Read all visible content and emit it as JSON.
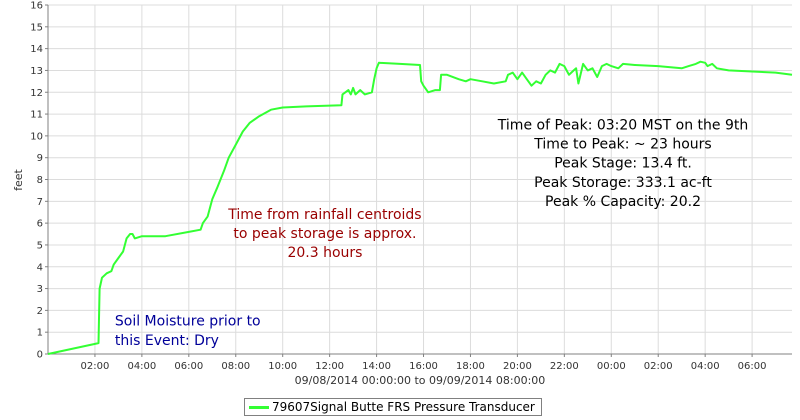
{
  "chart_data": {
    "type": "line",
    "title": "",
    "xlabel": "09/08/2014 00:00:00 to 09/09/2014 08:00:00",
    "ylabel": "feet",
    "xlim": [
      0,
      31.7
    ],
    "ylim": [
      0,
      16
    ],
    "yticks": [
      0,
      1,
      2,
      3,
      4,
      5,
      6,
      7,
      8,
      9,
      10,
      11,
      12,
      13,
      14,
      15,
      16
    ],
    "xticks": [
      {
        "x": 2,
        "label": "02:00"
      },
      {
        "x": 4,
        "label": "04:00"
      },
      {
        "x": 6,
        "label": "06:00"
      },
      {
        "x": 8,
        "label": "08:00"
      },
      {
        "x": 10,
        "label": "10:00"
      },
      {
        "x": 12,
        "label": "12:00"
      },
      {
        "x": 14,
        "label": "14:00"
      },
      {
        "x": 16,
        "label": "16:00"
      },
      {
        "x": 18,
        "label": "18:00"
      },
      {
        "x": 20,
        "label": "20:00"
      },
      {
        "x": 22,
        "label": "22:00"
      },
      {
        "x": 24,
        "label": "00:00"
      },
      {
        "x": 26,
        "label": "02:00"
      },
      {
        "x": 28,
        "label": "04:00"
      },
      {
        "x": 30,
        "label": "06:00"
      }
    ],
    "grid": true,
    "legend_position": "bottom",
    "series": [
      {
        "name": "79607Signal Butte FRS Pressure Transducer",
        "color": "#33ff33",
        "points": [
          [
            0,
            0.0
          ],
          [
            2.15,
            0.5
          ],
          [
            2.2,
            3.0
          ],
          [
            2.3,
            3.5
          ],
          [
            2.5,
            3.7
          ],
          [
            2.7,
            3.8
          ],
          [
            2.8,
            4.1
          ],
          [
            3.0,
            4.4
          ],
          [
            3.2,
            4.7
          ],
          [
            3.35,
            5.3
          ],
          [
            3.5,
            5.5
          ],
          [
            3.6,
            5.5
          ],
          [
            3.7,
            5.3
          ],
          [
            4.0,
            5.4
          ],
          [
            5.0,
            5.4
          ],
          [
            6.0,
            5.6
          ],
          [
            6.5,
            5.7
          ],
          [
            6.6,
            6.0
          ],
          [
            6.8,
            6.3
          ],
          [
            7.0,
            7.1
          ],
          [
            7.2,
            7.6
          ],
          [
            7.5,
            8.4
          ],
          [
            7.7,
            9.0
          ],
          [
            8.0,
            9.6
          ],
          [
            8.3,
            10.2
          ],
          [
            8.6,
            10.6
          ],
          [
            9.0,
            10.9
          ],
          [
            9.5,
            11.2
          ],
          [
            10.0,
            11.3
          ],
          [
            11.0,
            11.35
          ],
          [
            12.5,
            11.4
          ],
          [
            12.55,
            11.9
          ],
          [
            12.8,
            12.1
          ],
          [
            12.9,
            11.9
          ],
          [
            13.0,
            12.2
          ],
          [
            13.1,
            11.9
          ],
          [
            13.3,
            12.1
          ],
          [
            13.5,
            11.9
          ],
          [
            13.8,
            12.0
          ],
          [
            13.9,
            12.6
          ],
          [
            14.0,
            13.1
          ],
          [
            14.1,
            13.35
          ],
          [
            15.0,
            13.3
          ],
          [
            15.85,
            13.25
          ],
          [
            15.9,
            12.5
          ],
          [
            16.0,
            12.3
          ],
          [
            16.2,
            12.0
          ],
          [
            16.5,
            12.1
          ],
          [
            16.7,
            12.1
          ],
          [
            16.75,
            12.8
          ],
          [
            17.0,
            12.8
          ],
          [
            17.5,
            12.6
          ],
          [
            17.8,
            12.5
          ],
          [
            18.0,
            12.6
          ],
          [
            18.5,
            12.5
          ],
          [
            19.0,
            12.4
          ],
          [
            19.5,
            12.5
          ],
          [
            19.6,
            12.8
          ],
          [
            19.8,
            12.9
          ],
          [
            20.0,
            12.6
          ],
          [
            20.2,
            12.9
          ],
          [
            20.4,
            12.6
          ],
          [
            20.6,
            12.3
          ],
          [
            20.8,
            12.5
          ],
          [
            21.0,
            12.4
          ],
          [
            21.2,
            12.8
          ],
          [
            21.4,
            13.0
          ],
          [
            21.6,
            12.9
          ],
          [
            21.8,
            13.3
          ],
          [
            22.0,
            13.2
          ],
          [
            22.2,
            12.8
          ],
          [
            22.4,
            13.0
          ],
          [
            22.5,
            13.1
          ],
          [
            22.6,
            12.4
          ],
          [
            22.8,
            13.3
          ],
          [
            23.0,
            13.0
          ],
          [
            23.2,
            13.1
          ],
          [
            23.4,
            12.7
          ],
          [
            23.6,
            13.2
          ],
          [
            23.8,
            13.3
          ],
          [
            24.0,
            13.2
          ],
          [
            24.3,
            13.1
          ],
          [
            24.5,
            13.3
          ],
          [
            25.0,
            13.25
          ],
          [
            26.0,
            13.2
          ],
          [
            27.0,
            13.1
          ],
          [
            27.3,
            13.2
          ],
          [
            27.6,
            13.3
          ],
          [
            27.8,
            13.4
          ],
          [
            28.0,
            13.35
          ],
          [
            28.1,
            13.2
          ],
          [
            28.3,
            13.3
          ],
          [
            28.5,
            13.1
          ],
          [
            29.0,
            13.0
          ],
          [
            30.0,
            12.95
          ],
          [
            31.0,
            12.9
          ],
          [
            31.7,
            12.8
          ]
        ]
      }
    ],
    "annotations": [
      {
        "id": "peak-info",
        "color": "#000000",
        "anchor": "middle",
        "x": 24.5,
        "y": 10.3,
        "dy": -0.88,
        "lines": [
          "Time of Peak: 03:20 MST on the 9th",
          "Time to Peak: ~ 23 hours",
          "Peak Stage: 13.4 ft.",
          "Peak Storage: 333.1 ac-ft",
          "Peak % Capacity: 20.2"
        ]
      },
      {
        "id": "centroid-note",
        "color": "#990000",
        "anchor": "middle",
        "x": 11.8,
        "y": 6.2,
        "dy": -0.88,
        "lines": [
          "Time from rainfall centroids",
          "to peak storage is approx.",
          "20.3 hours"
        ]
      },
      {
        "id": "soil-moisture-note",
        "color": "#000099",
        "anchor": "start",
        "x": 2.85,
        "y": 1.3,
        "dy": -0.88,
        "lines": [
          "Soil Moisture prior to",
          "this Event: Dry"
        ]
      }
    ]
  }
}
